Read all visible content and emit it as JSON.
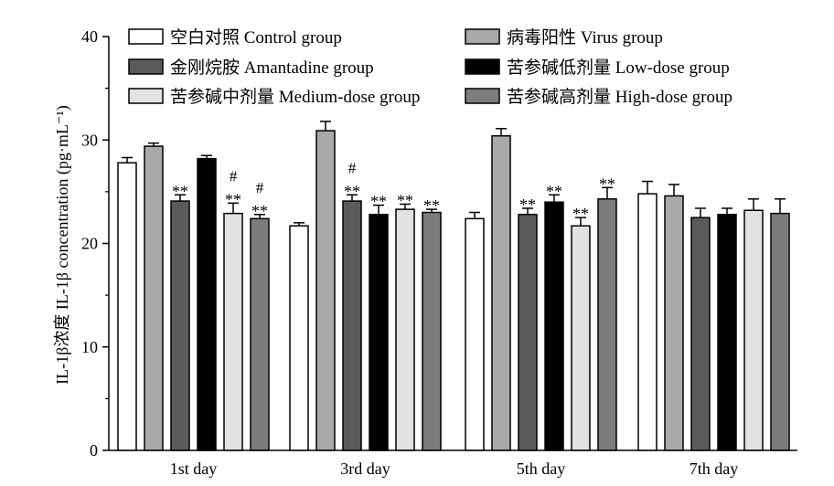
{
  "chart_data": {
    "type": "bar",
    "ylabel": "IL-1β浓度 IL-1β concentration (pg·mL⁻¹)",
    "ylim": [
      0,
      40
    ],
    "yticks": [
      0,
      10,
      20,
      30,
      40
    ],
    "categories": [
      "1st day",
      "3rd day",
      "5th day",
      "7th day"
    ],
    "series": [
      {
        "name": "空白对照 Control group",
        "color": "#ffffff",
        "values": [
          27.8,
          21.7,
          22.4,
          24.8
        ],
        "errors": [
          0.5,
          0.3,
          0.6,
          1.2
        ],
        "annotations": [
          "",
          "",
          "",
          ""
        ]
      },
      {
        "name": "病毒阳性 Virus group",
        "color": "#a9a9a9",
        "values": [
          29.4,
          30.9,
          30.4,
          24.6
        ],
        "errors": [
          0.3,
          0.9,
          0.7,
          1.1
        ],
        "annotations": [
          "",
          "",
          "",
          ""
        ]
      },
      {
        "name": "金刚烷胺 Amantadine group",
        "color": "#5b5b5b",
        "values": [
          24.1,
          24.1,
          22.8,
          22.5
        ],
        "errors": [
          0.6,
          0.6,
          0.6,
          0.9
        ],
        "annotations": [
          "**",
          "#\n**",
          "**",
          ""
        ]
      },
      {
        "name": "苦参碱低剂量 Low-dose group",
        "color": "#000000",
        "values": [
          28.2,
          22.8,
          24.0,
          22.8
        ],
        "errors": [
          0.3,
          0.9,
          0.7,
          0.6
        ],
        "annotations": [
          "",
          "**",
          "**",
          ""
        ]
      },
      {
        "name": "苦参碱中剂量 Medium-dose group",
        "color": "#e2e2e2",
        "values": [
          22.9,
          23.3,
          21.7,
          23.2
        ],
        "errors": [
          1.0,
          0.5,
          0.8,
          1.1
        ],
        "annotations": [
          "#\n**",
          "**",
          "**",
          ""
        ]
      },
      {
        "name": "苦参碱高剂量 High-dose group",
        "color": "#7c7c7c",
        "values": [
          22.4,
          23.0,
          24.3,
          22.9
        ],
        "errors": [
          0.4,
          0.3,
          1.1,
          1.4
        ],
        "annotations": [
          "#\n**",
          "**",
          "**",
          ""
        ]
      }
    ]
  }
}
